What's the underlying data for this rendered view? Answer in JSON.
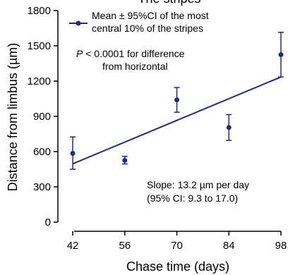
{
  "chart_data": {
    "type": "scatter",
    "title": "",
    "title_partial": "The stripes",
    "xlabel": "Chase time (days)",
    "ylabel": "Distance from limbus (µm)",
    "xlim": [
      38,
      98
    ],
    "ylim": [
      0,
      1800
    ],
    "xticks": [
      42,
      56,
      70,
      84,
      98
    ],
    "yticks": [
      0,
      300,
      600,
      900,
      1200,
      1500,
      1800
    ],
    "series": [
      {
        "name": "Mean ± 95%CI of the most central 10% of the stripes",
        "color": "#1f2a8c",
        "points": [
          {
            "x": 42,
            "y": 585,
            "lo": 450,
            "hi": 725
          },
          {
            "x": 56,
            "y": 525,
            "lo": 495,
            "hi": 560
          },
          {
            "x": 70,
            "y": 1040,
            "lo": 935,
            "hi": 1145
          },
          {
            "x": 84,
            "y": 805,
            "lo": 695,
            "hi": 915
          },
          {
            "x": 98,
            "y": 1425,
            "lo": 1235,
            "hi": 1615
          }
        ]
      }
    ],
    "fit_line": {
      "x": [
        42,
        98
      ],
      "y": [
        496,
        1235
      ],
      "color": "#1f2a8c"
    },
    "legend": {
      "line1": "Mean ± 95%CI of the most",
      "line2": "central 10% of the stripes",
      "placement": "top-left"
    },
    "annotations": {
      "p_italic": "P",
      "p_rest": " < 0.0001 for difference",
      "p_line2": "from horizontal",
      "slope_line1": "Slope: 13.2 µm per day",
      "slope_line2": "(95% CI: 9.3 to 17.0)"
    },
    "grid": false
  }
}
